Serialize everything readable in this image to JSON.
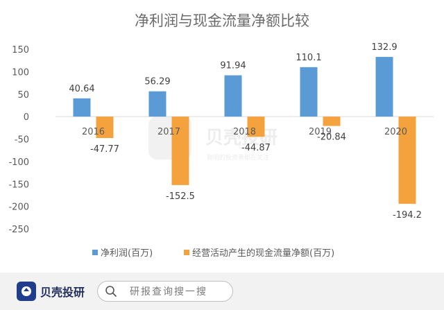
{
  "chart_data": {
    "type": "bar",
    "title": "净利润与现金流量净额比较",
    "categories": [
      "2016",
      "2017",
      "2018",
      "2019",
      "2020"
    ],
    "series": [
      {
        "name": "净利润(百万)",
        "color": "#5b9bd5",
        "values": [
          40.64,
          56.29,
          91.94,
          110.1,
          132.9
        ],
        "labels": [
          "40.64",
          "56.29",
          "91.94",
          "110.1",
          "132.9"
        ]
      },
      {
        "name": "经营活动产生的现金流量净额(百万)",
        "color": "#f4a23e",
        "values": [
          -47.77,
          -152.5,
          -44.87,
          -20.84,
          -194.2
        ],
        "labels": [
          "-47.77",
          "-152.5",
          "-44.87",
          "-20.84",
          "-194.2"
        ]
      }
    ],
    "yticks": [
      150,
      100,
      50,
      0,
      -50,
      -100,
      -150,
      -200,
      -250
    ],
    "ylim": [
      -250,
      150
    ],
    "grid": false,
    "legend_position": "bottom"
  },
  "watermark": {
    "brand": "贝壳投研",
    "slogan": "聪明的投资者都在关注"
  },
  "footer": {
    "logo_text": "贝壳投研",
    "search_placeholder": "研报查询搜一搜",
    "logo_color": "#1f3d8a"
  }
}
